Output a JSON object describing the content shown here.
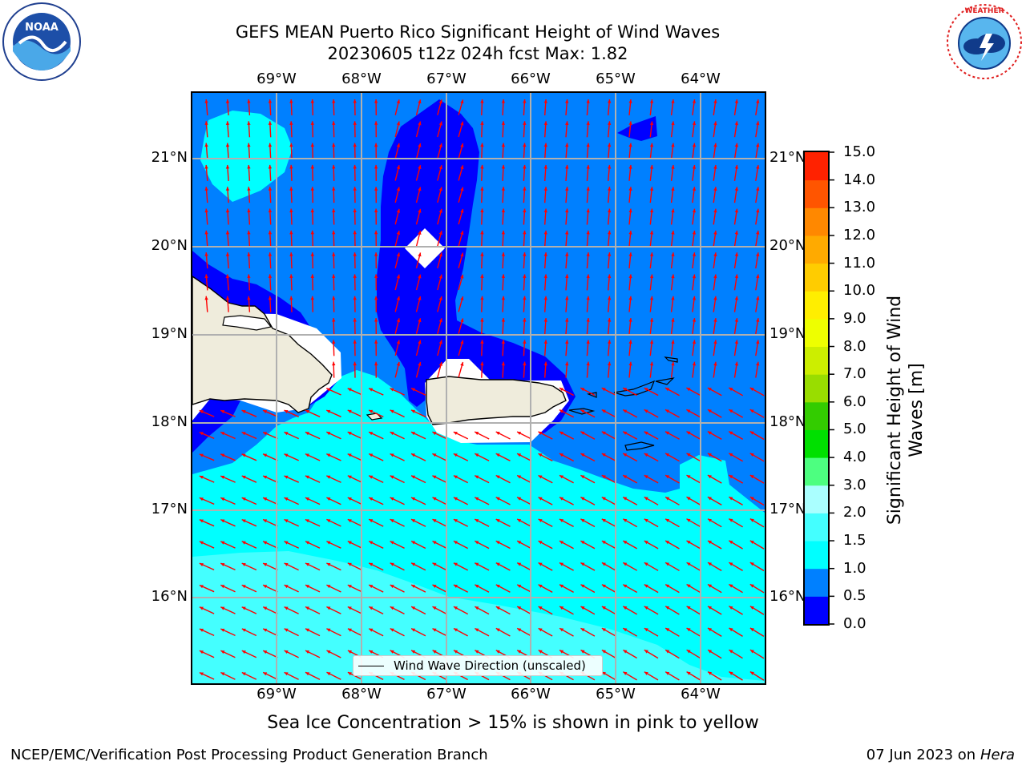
{
  "title": {
    "line1": "GEFS MEAN Puerto Rico Significant Height of Wind Waves",
    "line2": "20230605 t12z 024h fcst   Max: 1.82"
  },
  "logos": {
    "left": "noaa-logo",
    "right": "nws-logo"
  },
  "lon_labels": [
    "69°W",
    "68°W",
    "67°W",
    "66°W",
    "65°W",
    "64°W"
  ],
  "lat_labels": [
    "21°N",
    "20°N",
    "19°N",
    "18°N",
    "17°N",
    "16°N"
  ],
  "colorbar": {
    "title": "Significant Height of Wind Waves [m]",
    "ticks": [
      "0.0",
      "0.5",
      "1.0",
      "1.5",
      "2.0",
      "3.0",
      "4.0",
      "5.0",
      "6.0",
      "7.0",
      "8.0",
      "9.0",
      "10.0",
      "11.0",
      "12.0",
      "13.0",
      "14.0",
      "15.0"
    ],
    "colors": [
      "#0000ff",
      "#0080ff",
      "#00ffff",
      "#44ffff",
      "#aaffff",
      "#4dff80",
      "#00e000",
      "#33cc00",
      "#99dd00",
      "#ccee00",
      "#eeff00",
      "#ffee00",
      "#ffcc00",
      "#ffaa00",
      "#ff8800",
      "#ff5500",
      "#ff2200"
    ]
  },
  "legend": {
    "label": "Wind Wave Direction (unscaled)"
  },
  "footer_note": "Sea Ice Concentration > 15% is shown in pink to yellow",
  "credit": "NCEP/EMC/Verification Post Processing Product Generation Branch",
  "run_date": "07 Jun 2023 on",
  "host": "Hera",
  "map_colors": {
    "deep": "#0000ff",
    "mid": "#0080ff",
    "shallow": "#00ffff",
    "light": "#44ffff",
    "land": "#efecdc",
    "arrow": "#ff0000",
    "grid": "#b0b0b0"
  }
}
